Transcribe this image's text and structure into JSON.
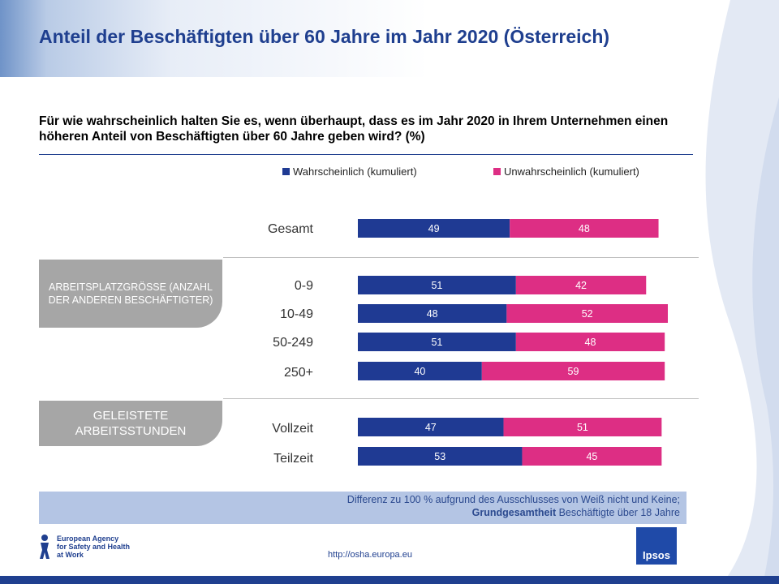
{
  "title": "Anteil der Beschäftigten über 60 Jahre im Jahr 2020 (Österreich)",
  "question": "Für wie wahrscheinlich halten Sie es, wenn überhaupt, dass es im Jahr 2020 in Ihrem Unternehmen einen höheren Anteil von Beschäftigten über 60 Jahre geben wird?   (%)",
  "groups": {
    "size": "ARBEITSPLATZGRÖSSE (ANZAHL DER ANDEREN BESCHÄFTIGTER)",
    "hours": "GELEISTETE ARBEITSSTUNDEN"
  },
  "footnote": {
    "line1": "Differenz zu 100 % aufgrund des Ausschlusses von Weiß nicht und Keine;",
    "base_label": "Grundgesamtheit",
    "base_text": " Beschäftigte über 18 Jahre"
  },
  "url": "http://osha.europa.eu",
  "logo": {
    "line1": "European Agency",
    "line2": "for Safety and Health",
    "line3": "at Work",
    "ipsos": "Ipsos"
  },
  "colors": {
    "likely": "#1f3a93",
    "unlikely": "#dd2e84"
  },
  "chart_data": {
    "type": "bar",
    "orientation": "horizontal-stacked",
    "xlim": [
      0,
      100
    ],
    "series": [
      {
        "name": "Wahrscheinlich (kumuliert)",
        "values": [
          49,
          51,
          48,
          51,
          40,
          47,
          53
        ]
      },
      {
        "name": "Unwahrscheinlich (kumuliert)",
        "values": [
          48,
          42,
          52,
          48,
          59,
          51,
          45
        ]
      }
    ],
    "categories": [
      "Gesamt",
      "0-9",
      "10-49",
      "50-249",
      "250+",
      "Vollzeit",
      "Teilzeit"
    ],
    "legend_position": "top-right"
  }
}
